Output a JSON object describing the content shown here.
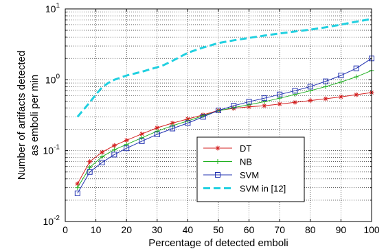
{
  "chart_data": {
    "type": "line",
    "title": "",
    "xlabel": "Percentage of detected emboli",
    "ylabel_lines": [
      "Number of artifacts detected",
      "as emboli per min"
    ],
    "xlim": [
      0,
      100
    ],
    "ylim": [
      0.01,
      10
    ],
    "yscale": "log",
    "x_ticks": [
      0,
      10,
      20,
      30,
      40,
      50,
      60,
      70,
      80,
      90,
      100
    ],
    "y_ticks": [
      {
        "base": "10",
        "exp": "-2",
        "value": 0.01
      },
      {
        "base": "10",
        "exp": "-1",
        "value": 0.1
      },
      {
        "base": "10",
        "exp": "0",
        "value": 1
      },
      {
        "base": "10",
        "exp": "1",
        "value": 10
      }
    ],
    "grid": true,
    "legend_position": "lower-right",
    "series": [
      {
        "name": "DT",
        "color": "#d42020",
        "marker": "asterisk",
        "style": "solid",
        "x": [
          4,
          8,
          12,
          16,
          20,
          25,
          30,
          35,
          40,
          45,
          50,
          55,
          60,
          65,
          70,
          75,
          80,
          85,
          90,
          95,
          100
        ],
        "y": [
          0.034,
          0.07,
          0.095,
          0.118,
          0.14,
          0.172,
          0.21,
          0.245,
          0.28,
          0.32,
          0.37,
          0.395,
          0.415,
          0.43,
          0.455,
          0.48,
          0.51,
          0.54,
          0.575,
          0.615,
          0.66
        ]
      },
      {
        "name": "NB",
        "color": "#20b020",
        "marker": "plus",
        "style": "solid",
        "x": [
          4,
          8,
          12,
          16,
          20,
          25,
          30,
          35,
          40,
          45,
          50,
          55,
          60,
          65,
          70,
          75,
          80,
          85,
          90,
          95,
          100
        ],
        "y": [
          0.03,
          0.058,
          0.082,
          0.103,
          0.122,
          0.152,
          0.188,
          0.225,
          0.262,
          0.31,
          0.365,
          0.405,
          0.445,
          0.49,
          0.55,
          0.62,
          0.7,
          0.8,
          0.93,
          1.1,
          1.35
        ]
      },
      {
        "name": "SVM",
        "color": "#2030b0",
        "marker": "square",
        "style": "solid",
        "x": [
          4,
          8,
          12,
          16,
          20,
          25,
          30,
          35,
          40,
          45,
          50,
          55,
          60,
          65,
          70,
          75,
          80,
          85,
          90,
          95,
          100
        ],
        "y": [
          0.025,
          0.05,
          0.068,
          0.088,
          0.108,
          0.136,
          0.17,
          0.205,
          0.245,
          0.3,
          0.37,
          0.43,
          0.49,
          0.55,
          0.62,
          0.7,
          0.8,
          0.95,
          1.15,
          1.45,
          2.0
        ]
      },
      {
        "name": "SVM in [12]",
        "color": "#20d0e0",
        "marker": "none",
        "style": "dashed",
        "x": [
          4,
          6,
          8,
          10,
          12,
          14,
          16,
          18,
          20,
          25,
          30,
          32,
          35,
          40,
          45,
          50,
          55,
          60,
          65,
          70,
          75,
          80,
          85,
          90,
          95,
          100
        ],
        "y": [
          0.3,
          0.38,
          0.48,
          0.62,
          0.78,
          0.9,
          1.0,
          1.07,
          1.15,
          1.3,
          1.5,
          1.6,
          1.85,
          2.4,
          2.85,
          3.3,
          3.6,
          3.9,
          4.2,
          4.5,
          4.8,
          5.1,
          5.5,
          6.0,
          6.6,
          7.2
        ]
      }
    ]
  }
}
